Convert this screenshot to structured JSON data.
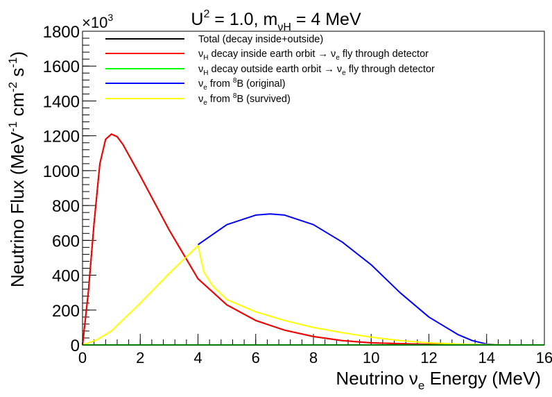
{
  "chart_data": {
    "type": "line",
    "title": {
      "pre": "U",
      "sup": "2",
      "mid": " = 1.0, m",
      "sub": "νH",
      "post": " = 4 MeV"
    },
    "multiplier": {
      "text": "×10",
      "sup": "3"
    },
    "xlabel": {
      "pre": "Neutrino ν",
      "sub": "e",
      "post": " Energy (MeV)"
    },
    "ylabel": {
      "a": "Neutrino Flux (MeV",
      "s1": "-1",
      "b": " cm",
      "s2": "-2",
      "c": " s",
      "s3": "-1",
      "d": ")"
    },
    "xlim": [
      0,
      16
    ],
    "ylim": [
      0,
      1800
    ],
    "x_major_ticks": [
      0,
      2,
      4,
      6,
      8,
      10,
      12,
      14,
      16
    ],
    "x_tick_labels": [
      "0",
      "2",
      "4",
      "6",
      "8",
      "10",
      "12",
      "14",
      "16"
    ],
    "y_major_ticks": [
      0,
      200,
      400,
      600,
      800,
      1000,
      1200,
      1400,
      1600,
      1800
    ],
    "y_tick_labels": [
      "0",
      "200",
      "400",
      "600",
      "800",
      "1000",
      "1200",
      "1400",
      "1600",
      "1800"
    ],
    "x_minor_step": 0.4,
    "y_minor_step": 40,
    "grid": false,
    "legend_position": "top-left",
    "legend": [
      {
        "color": "#000000",
        "parts": [
          {
            "t": "Total (decay inside+outside)"
          }
        ]
      },
      {
        "color": "#ff0000",
        "parts": [
          {
            "t": "ν"
          },
          {
            "t": "H",
            "s": "sub"
          },
          {
            "t": " decay inside earth orbit → ν"
          },
          {
            "t": "e",
            "s": "sub"
          },
          {
            "t": " fly through detector"
          }
        ]
      },
      {
        "color": "#00ff00",
        "parts": [
          {
            "t": "ν"
          },
          {
            "t": "H",
            "s": "sub"
          },
          {
            "t": " decay outside earth orbit → ν"
          },
          {
            "t": "e",
            "s": "sub"
          },
          {
            "t": " fly through detector"
          }
        ]
      },
      {
        "color": "#0000ff",
        "parts": [
          {
            "t": "ν"
          },
          {
            "t": "e",
            "s": "sub"
          },
          {
            "t": " from "
          },
          {
            "t": "8",
            "s": "sup"
          },
          {
            "t": "B (original)"
          }
        ]
      },
      {
        "color": "#ffff00",
        "parts": [
          {
            "t": "ν"
          },
          {
            "t": "e",
            "s": "sub"
          },
          {
            "t": " from "
          },
          {
            "t": "8",
            "s": "sup"
          },
          {
            "t": "B (survived)"
          }
        ]
      }
    ],
    "series": [
      {
        "name": "Total (decay inside+outside)",
        "color": "#000000",
        "x": [
          0,
          0.2,
          0.4,
          0.6,
          0.8,
          1.0,
          1.2,
          1.4,
          2,
          3,
          4,
          5,
          6,
          7,
          8,
          9,
          10,
          12,
          14,
          16
        ],
        "y": [
          0,
          300,
          700,
          1040,
          1180,
          1210,
          1195,
          1150,
          970,
          660,
          380,
          230,
          140,
          85,
          48,
          25,
          12,
          3,
          0,
          0
        ]
      },
      {
        "name": "νH decay inside earth orbit → νe fly through detector",
        "color": "#ff0000",
        "x": [
          0,
          0.2,
          0.4,
          0.6,
          0.8,
          1.0,
          1.2,
          1.4,
          2,
          3,
          4,
          5,
          6,
          7,
          8,
          9,
          10,
          12,
          14,
          16
        ],
        "y": [
          0,
          300,
          700,
          1040,
          1180,
          1210,
          1195,
          1150,
          970,
          660,
          380,
          230,
          140,
          85,
          48,
          25,
          12,
          3,
          0,
          0
        ]
      },
      {
        "name": "νH decay outside earth orbit → νe fly through detector",
        "color": "#00ff00",
        "x": [
          0,
          16
        ],
        "y": [
          0,
          0
        ]
      },
      {
        "name": "νe from 8B (original)",
        "color": "#0000ff",
        "x": [
          4,
          5,
          6,
          6.5,
          7,
          8,
          9,
          10,
          11,
          12,
          13,
          13.5,
          14,
          14.5,
          15,
          16
        ],
        "y": [
          575,
          690,
          745,
          752,
          745,
          690,
          590,
          460,
          300,
          160,
          60,
          25,
          5,
          0,
          0,
          0
        ]
      },
      {
        "name": "νe from 8B (survived)",
        "color": "#ffff00",
        "x": [
          0,
          0.5,
          1,
          2,
          3,
          4,
          4.2,
          4.5,
          5,
          6,
          7,
          8,
          9,
          10,
          11,
          12,
          13,
          14,
          15,
          16
        ],
        "y": [
          0,
          30,
          80,
          240,
          410,
          570,
          420,
          340,
          260,
          190,
          140,
          100,
          70,
          45,
          25,
          12,
          5,
          2,
          0,
          0
        ]
      }
    ]
  }
}
